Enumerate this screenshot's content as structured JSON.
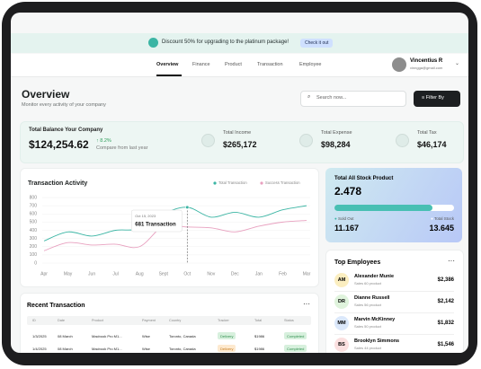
{
  "banner": {
    "text": "Discount 50% for upgrading to the platinum package!",
    "button": "Check it out"
  },
  "nav": {
    "items": [
      "Overview",
      "Finance",
      "Product",
      "Transaction",
      "Employee"
    ],
    "user": {
      "name": "Vincentius R",
      "email": "vinngga@gmail.com"
    }
  },
  "header": {
    "title": "Overview",
    "subtitle": "Monitor every activity of your company",
    "search": "Search now...",
    "filter": "Filter By"
  },
  "summary": {
    "balance_label": "Total Balance Your Company",
    "balance": "$124,254.62",
    "change": "↑ 8.2%",
    "change_note": "Compare from last year",
    "stats": [
      {
        "label": "Total Income",
        "value": "$265,172"
      },
      {
        "label": "Total Expense",
        "value": "$98,284"
      },
      {
        "label": "Total Tax",
        "value": "$46,174"
      }
    ]
  },
  "chart_data": {
    "type": "line",
    "title": "Transaction Activity",
    "categories": [
      "Apr",
      "May",
      "Jun",
      "Jul",
      "Aug",
      "Sept",
      "Oct",
      "Nov",
      "Dec",
      "Jan",
      "Feb",
      "Mar"
    ],
    "series": [
      {
        "name": "Total Transaction",
        "color": "#3bb5a4",
        "values": [
          270,
          380,
          330,
          400,
          420,
          600,
          681,
          560,
          620,
          560,
          650,
          700
        ]
      },
      {
        "name": "Success Transaction",
        "color": "#e8a0bf",
        "values": [
          150,
          250,
          220,
          230,
          200,
          450,
          440,
          430,
          380,
          450,
          500,
          520
        ]
      }
    ],
    "ylim": [
      0,
      800
    ],
    "yticks": [
      0,
      100,
      200,
      300,
      400,
      500,
      600,
      700,
      800
    ],
    "grid": true,
    "tooltip": {
      "date": "Oct 15, 2023",
      "label": "681 Transaction"
    }
  },
  "stock": {
    "title": "Total All Stock Product",
    "value": 2.478,
    "sold_label": "Sold Out",
    "sold": 11.167,
    "total_label": "Total Stock",
    "total": 13.645
  },
  "employees": {
    "title": "Top Employees",
    "rows": [
      {
        "initials": "AM",
        "name": "Alexander Munie",
        "note": "Sales 60 product",
        "amount": "$2,386"
      },
      {
        "initials": "DR",
        "name": "Dianne Russell",
        "note": "Sales 56 product",
        "amount": "$2,142"
      },
      {
        "initials": "MM",
        "name": "Marvin McKinney",
        "note": "Sales 50 product",
        "amount": "$1,832"
      },
      {
        "initials": "BS",
        "name": "Brooklyn Simmons",
        "note": "Sales 44 product",
        "amount": "$1,546"
      }
    ]
  },
  "transactions": {
    "title": "Recent Transaction",
    "columns": [
      "ID",
      "Date",
      "Product",
      "Payment",
      "Country",
      "Tracker",
      "Total",
      "Status"
    ],
    "rows": [
      [
        "1/3/2025",
        "08 March",
        "Macbook Pro M1...",
        "Wise",
        "Toronto, Canada",
        "Delivery",
        "$1986",
        "Completed"
      ],
      [
        "1/4/2025",
        "08 March",
        "Macbook Pro M1...",
        "Wise",
        "Toronto, Canada",
        "Delivery",
        "$1986",
        "Completed"
      ]
    ]
  }
}
